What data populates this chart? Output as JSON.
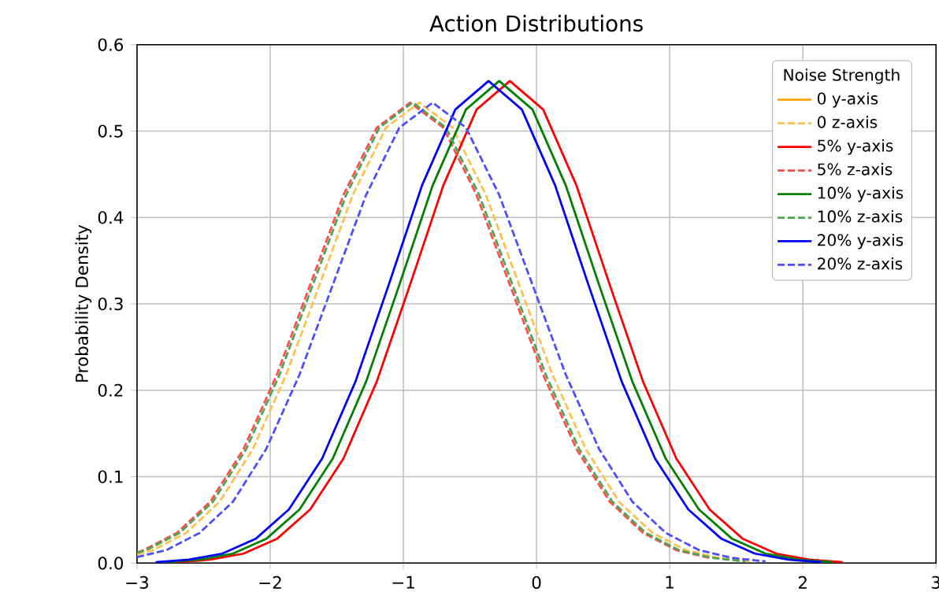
{
  "chart_data": {
    "type": "line",
    "title": "Action Distributions",
    "ylabel": "Probability Density",
    "legend_title": "Noise Strength",
    "xlim": [
      -3,
      3
    ],
    "ylim": [
      0,
      0.6
    ],
    "xticks": [
      {
        "value": -3,
        "label": "−3"
      },
      {
        "value": -2,
        "label": "−2"
      },
      {
        "value": -1,
        "label": "−1"
      },
      {
        "value": 0,
        "label": "0"
      },
      {
        "value": 1,
        "label": "1"
      },
      {
        "value": 2,
        "label": "2"
      },
      {
        "value": 3,
        "label": "3"
      }
    ],
    "yticks": [
      {
        "value": 0,
        "label": "0.0"
      },
      {
        "value": 0.1,
        "label": "0.1"
      },
      {
        "value": 0.2,
        "label": "0.2"
      },
      {
        "value": 0.3,
        "label": "0.3"
      },
      {
        "value": 0.4,
        "label": "0.4"
      },
      {
        "value": 0.5,
        "label": "0.5"
      },
      {
        "value": 0.6,
        "label": "0.6"
      }
    ],
    "grid": true,
    "legend": "top right",
    "marker": "none",
    "series": [
      {
        "name": "0 y-axis",
        "color": "#ffa500",
        "line_style": "solid"
      },
      {
        "name": "0 z-axis",
        "color": "#ffc04d",
        "line_style": "dashed",
        "x": [
          -3,
          -2.88,
          -2.63,
          -2.38,
          -2.13,
          -1.88,
          -1.63,
          -1.38,
          -1.13,
          -0.88,
          -0.63,
          -0.38,
          -0.13,
          0.12,
          0.37,
          0.62,
          0.87,
          1.12,
          1.37,
          1.62
        ],
        "values": [
          0.01,
          0.015,
          0.035,
          0.071,
          0.132,
          0.218,
          0.322,
          0.426,
          0.504,
          0.533,
          0.504,
          0.426,
          0.322,
          0.218,
          0.132,
          0.071,
          0.035,
          0.015,
          0.006,
          0.002
        ]
      },
      {
        "name": "5% y-axis",
        "color": "#ff0000",
        "line_style": "solid",
        "x": [
          -2.7,
          -2.45,
          -2.2,
          -1.95,
          -1.7,
          -1.45,
          -1.2,
          -0.95,
          -0.7,
          -0.45,
          -0.2,
          0.05,
          0.3,
          0.55,
          0.8,
          1.05,
          1.3,
          1.55,
          1.8,
          2.05,
          2.3
        ],
        "values": [
          0.001,
          0.004,
          0.011,
          0.028,
          0.062,
          0.121,
          0.21,
          0.322,
          0.437,
          0.525,
          0.558,
          0.525,
          0.437,
          0.322,
          0.21,
          0.121,
          0.062,
          0.028,
          0.011,
          0.004,
          0.001
        ]
      },
      {
        "name": "5% z-axis",
        "color": "#ff4d4d",
        "line_style": "dashed",
        "x": [
          -3,
          -2.95,
          -2.7,
          -2.45,
          -2.2,
          -1.95,
          -1.7,
          -1.45,
          -1.2,
          -0.95,
          -0.7,
          -0.45,
          -0.2,
          0.05,
          0.3,
          0.55,
          0.8,
          1.05,
          1.3
        ],
        "values": [
          0.012,
          0.015,
          0.035,
          0.071,
          0.132,
          0.218,
          0.322,
          0.426,
          0.504,
          0.533,
          0.504,
          0.426,
          0.322,
          0.218,
          0.132,
          0.071,
          0.035,
          0.015,
          0.006
        ]
      },
      {
        "name": "10% y-axis",
        "color": "#008000",
        "line_style": "solid",
        "x": [
          -2.78,
          -2.53,
          -2.28,
          -2.03,
          -1.78,
          -1.53,
          -1.28,
          -1.03,
          -0.78,
          -0.53,
          -0.28,
          -0.03,
          0.22,
          0.47,
          0.72,
          0.97,
          1.22,
          1.47,
          1.72,
          1.97,
          2.22
        ],
        "values": [
          0.001,
          0.004,
          0.011,
          0.028,
          0.062,
          0.121,
          0.21,
          0.322,
          0.437,
          0.525,
          0.558,
          0.525,
          0.437,
          0.322,
          0.21,
          0.121,
          0.062,
          0.028,
          0.011,
          0.004,
          0.001
        ]
      },
      {
        "name": "10% z-axis",
        "color": "#4da64d",
        "line_style": "dashed",
        "x": [
          -3,
          -2.93,
          -2.68,
          -2.43,
          -2.18,
          -1.93,
          -1.68,
          -1.43,
          -1.18,
          -0.93,
          -0.68,
          -0.43,
          -0.18,
          0.07,
          0.32,
          0.57,
          0.82,
          1.07,
          1.32,
          1.57
        ],
        "values": [
          0.012,
          0.015,
          0.035,
          0.071,
          0.132,
          0.218,
          0.322,
          0.426,
          0.504,
          0.533,
          0.504,
          0.426,
          0.322,
          0.218,
          0.132,
          0.071,
          0.035,
          0.015,
          0.006,
          0.002
        ]
      },
      {
        "name": "20% y-axis",
        "color": "#0000ff",
        "line_style": "solid",
        "x": [
          -2.86,
          -2.61,
          -2.36,
          -2.11,
          -1.86,
          -1.61,
          -1.36,
          -1.11,
          -0.86,
          -0.61,
          -0.36,
          -0.11,
          0.14,
          0.39,
          0.64,
          0.89,
          1.14,
          1.39,
          1.64,
          1.89,
          2.14
        ],
        "values": [
          0.001,
          0.004,
          0.011,
          0.028,
          0.062,
          0.121,
          0.21,
          0.322,
          0.437,
          0.525,
          0.558,
          0.525,
          0.437,
          0.322,
          0.21,
          0.121,
          0.062,
          0.028,
          0.011,
          0.004,
          0.001
        ]
      },
      {
        "name": "20% z-axis",
        "color": "#4d4dff",
        "line_style": "dashed",
        "x": [
          -3,
          -2.78,
          -2.53,
          -2.28,
          -2.03,
          -1.78,
          -1.53,
          -1.28,
          -1.03,
          -0.78,
          -0.53,
          -0.28,
          -0.03,
          0.22,
          0.47,
          0.72,
          0.97,
          1.22,
          1.47,
          1.72
        ],
        "values": [
          0.007,
          0.015,
          0.035,
          0.071,
          0.132,
          0.218,
          0.322,
          0.426,
          0.504,
          0.533,
          0.504,
          0.426,
          0.322,
          0.218,
          0.132,
          0.071,
          0.035,
          0.015,
          0.006,
          0.002
        ]
      }
    ]
  }
}
